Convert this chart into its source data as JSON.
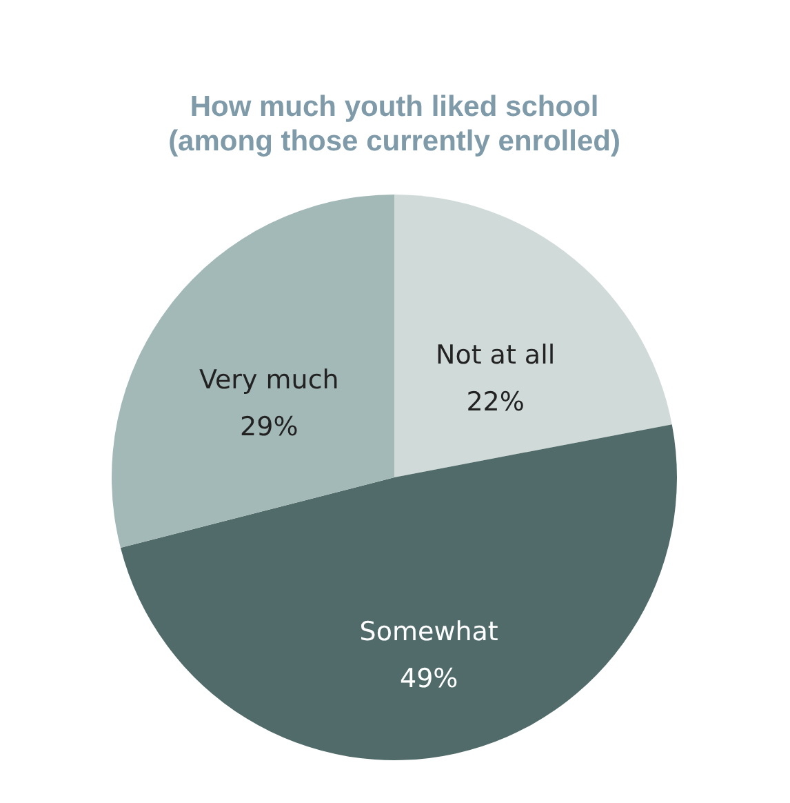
{
  "chart_data": {
    "type": "pie",
    "title": "How much youth liked school\n(among those currently enrolled)",
    "categories": [
      "Not at all",
      "Somewhat",
      "Very much"
    ],
    "values": [
      22,
      49,
      29
    ],
    "value_labels": [
      "22%",
      "49%",
      "29%"
    ],
    "colors": [
      "#d0dbd9",
      "#506b69",
      "#a3b9b7"
    ],
    "legend": false
  }
}
